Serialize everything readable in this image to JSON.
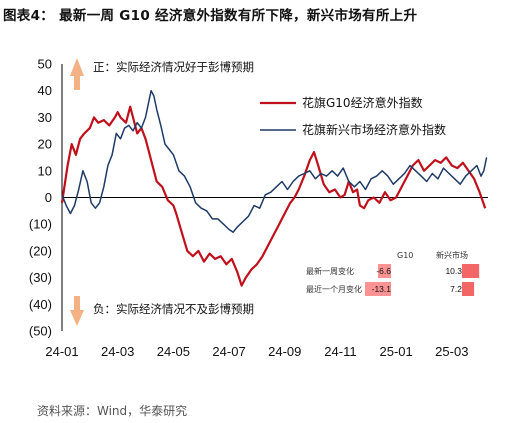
{
  "title": "图表4：  最新一周 G10 经济意外指数有所下降，新兴市场有所上升",
  "source": "资料来源：Wind，华泰研究",
  "annotations": {
    "positive": "正：实际经济情况好于彭博预期",
    "negative": "负：实际经济情况不及彭博预期"
  },
  "colors": {
    "g10": "#c0101b",
    "em": "#1e3a66",
    "arrow": "#f4b183"
  },
  "table": {
    "headers": [
      "G10",
      "新兴市场"
    ],
    "rows": [
      {
        "label": "最新一周变化",
        "g10": "-6.6",
        "em": "10.3",
        "g10_frac": 0.5,
        "em_frac": 0.78
      },
      {
        "label": "最近一个月变化",
        "g10": "-13.1",
        "em": "7.2",
        "g10_frac": 1.0,
        "em_frac": 0.55
      }
    ]
  },
  "chart_data": {
    "type": "line",
    "title": "",
    "xlabel": "",
    "ylabel": "",
    "ylim": [
      -50,
      50
    ],
    "yticks": [
      "50",
      "40",
      "30",
      "20",
      "10",
      "0",
      "(10)",
      "(20)",
      "(30)",
      "(40)",
      "(50)"
    ],
    "ytick_values": [
      50,
      40,
      30,
      20,
      10,
      0,
      -10,
      -20,
      -30,
      -40,
      -50
    ],
    "xticks": [
      "24-01",
      "24-03",
      "24-05",
      "24-07",
      "24-09",
      "24-11",
      "25-01",
      "25-03"
    ],
    "xtick_values": [
      0,
      2,
      4,
      6,
      8,
      10,
      12,
      14
    ],
    "x_unit": "months since 24-01",
    "legend_position": "top-right",
    "series": [
      {
        "name": "花旗G10经济意外指数",
        "color": "#c0101b",
        "points": [
          [
            0,
            -2
          ],
          [
            0.1,
            5
          ],
          [
            0.2,
            12
          ],
          [
            0.35,
            20
          ],
          [
            0.5,
            16
          ],
          [
            0.65,
            22
          ],
          [
            0.8,
            24
          ],
          [
            1.0,
            26
          ],
          [
            1.15,
            30
          ],
          [
            1.3,
            28
          ],
          [
            1.5,
            29
          ],
          [
            1.7,
            27
          ],
          [
            1.9,
            30
          ],
          [
            2.0,
            32
          ],
          [
            2.1,
            30
          ],
          [
            2.3,
            28
          ],
          [
            2.45,
            34
          ],
          [
            2.55,
            30
          ],
          [
            2.7,
            24
          ],
          [
            2.85,
            26
          ],
          [
            3.0,
            22
          ],
          [
            3.1,
            18
          ],
          [
            3.25,
            12
          ],
          [
            3.4,
            6
          ],
          [
            3.6,
            4
          ],
          [
            3.8,
            -1
          ],
          [
            4.0,
            -3
          ],
          [
            4.1,
            -6
          ],
          [
            4.3,
            -13
          ],
          [
            4.5,
            -20
          ],
          [
            4.7,
            -22
          ],
          [
            4.9,
            -20
          ],
          [
            5.1,
            -24
          ],
          [
            5.3,
            -21
          ],
          [
            5.5,
            -23
          ],
          [
            5.7,
            -22
          ],
          [
            5.9,
            -25
          ],
          [
            6.1,
            -23
          ],
          [
            6.3,
            -28
          ],
          [
            6.45,
            -33
          ],
          [
            6.6,
            -30
          ],
          [
            6.8,
            -27
          ],
          [
            7.0,
            -25
          ],
          [
            7.2,
            -22
          ],
          [
            7.4,
            -18
          ],
          [
            7.6,
            -14
          ],
          [
            7.8,
            -10
          ],
          [
            8.0,
            -6
          ],
          [
            8.2,
            -2
          ],
          [
            8.35,
            0
          ],
          [
            8.5,
            3
          ],
          [
            8.7,
            8
          ],
          [
            8.9,
            14
          ],
          [
            9.05,
            17
          ],
          [
            9.2,
            12
          ],
          [
            9.4,
            5
          ],
          [
            9.6,
            2
          ],
          [
            9.8,
            3
          ],
          [
            10.0,
            0
          ],
          [
            10.15,
            1
          ],
          [
            10.3,
            6
          ],
          [
            10.45,
            2
          ],
          [
            10.6,
            3
          ],
          [
            10.7,
            -3
          ],
          [
            10.85,
            -4
          ],
          [
            11.0,
            -1
          ],
          [
            11.2,
            0
          ],
          [
            11.4,
            -2
          ],
          [
            11.6,
            2
          ],
          [
            11.8,
            -1
          ],
          [
            12.0,
            0
          ],
          [
            12.2,
            4
          ],
          [
            12.4,
            8
          ],
          [
            12.6,
            12
          ],
          [
            12.8,
            14
          ],
          [
            13.0,
            10
          ],
          [
            13.2,
            12
          ],
          [
            13.4,
            14
          ],
          [
            13.6,
            13
          ],
          [
            13.8,
            15
          ],
          [
            14.0,
            12
          ],
          [
            14.2,
            11
          ],
          [
            14.4,
            13
          ],
          [
            14.6,
            10
          ],
          [
            14.8,
            7
          ],
          [
            15.0,
            2
          ],
          [
            15.1,
            -1
          ],
          [
            15.2,
            -4
          ]
        ]
      },
      {
        "name": "花旗新兴市场经济意外指数",
        "color": "#1e3a66",
        "points": [
          [
            0,
            1
          ],
          [
            0.15,
            -3
          ],
          [
            0.3,
            -6
          ],
          [
            0.45,
            -3
          ],
          [
            0.6,
            3
          ],
          [
            0.75,
            10
          ],
          [
            0.9,
            6
          ],
          [
            1.05,
            -2
          ],
          [
            1.2,
            -4
          ],
          [
            1.35,
            -2
          ],
          [
            1.5,
            4
          ],
          [
            1.65,
            12
          ],
          [
            1.8,
            16
          ],
          [
            1.95,
            24
          ],
          [
            2.1,
            22
          ],
          [
            2.25,
            26
          ],
          [
            2.4,
            27
          ],
          [
            2.55,
            25
          ],
          [
            2.7,
            28
          ],
          [
            2.85,
            26
          ],
          [
            3.0,
            30
          ],
          [
            3.1,
            35
          ],
          [
            3.2,
            40
          ],
          [
            3.3,
            38
          ],
          [
            3.4,
            33
          ],
          [
            3.55,
            27
          ],
          [
            3.7,
            20
          ],
          [
            3.85,
            18
          ],
          [
            4.0,
            16
          ],
          [
            4.2,
            10
          ],
          [
            4.4,
            8
          ],
          [
            4.6,
            4
          ],
          [
            4.8,
            -2
          ],
          [
            5.0,
            -4
          ],
          [
            5.2,
            -5
          ],
          [
            5.4,
            -8
          ],
          [
            5.6,
            -8
          ],
          [
            5.8,
            -10
          ],
          [
            6.0,
            -12
          ],
          [
            6.15,
            -13
          ],
          [
            6.3,
            -11
          ],
          [
            6.5,
            -9
          ],
          [
            6.7,
            -7
          ],
          [
            6.9,
            -3
          ],
          [
            7.1,
            -4
          ],
          [
            7.3,
            1
          ],
          [
            7.5,
            2
          ],
          [
            7.7,
            4
          ],
          [
            7.9,
            6
          ],
          [
            8.1,
            3
          ],
          [
            8.3,
            6
          ],
          [
            8.5,
            8
          ],
          [
            8.7,
            9
          ],
          [
            8.9,
            10
          ],
          [
            9.1,
            7
          ],
          [
            9.3,
            9
          ],
          [
            9.5,
            8
          ],
          [
            9.7,
            10
          ],
          [
            9.9,
            8
          ],
          [
            10.1,
            11
          ],
          [
            10.3,
            6
          ],
          [
            10.5,
            4
          ],
          [
            10.7,
            6
          ],
          [
            10.9,
            3
          ],
          [
            11.1,
            7
          ],
          [
            11.3,
            8
          ],
          [
            11.5,
            10
          ],
          [
            11.7,
            8
          ],
          [
            11.9,
            5
          ],
          [
            12.1,
            7
          ],
          [
            12.3,
            9
          ],
          [
            12.5,
            12
          ],
          [
            12.7,
            10
          ],
          [
            12.9,
            8
          ],
          [
            13.1,
            6
          ],
          [
            13.3,
            9
          ],
          [
            13.5,
            7
          ],
          [
            13.7,
            11
          ],
          [
            13.9,
            9
          ],
          [
            14.1,
            7
          ],
          [
            14.3,
            5
          ],
          [
            14.5,
            8
          ],
          [
            14.7,
            10
          ],
          [
            14.9,
            12
          ],
          [
            15.05,
            8
          ],
          [
            15.15,
            10
          ],
          [
            15.25,
            15
          ]
        ]
      }
    ]
  }
}
